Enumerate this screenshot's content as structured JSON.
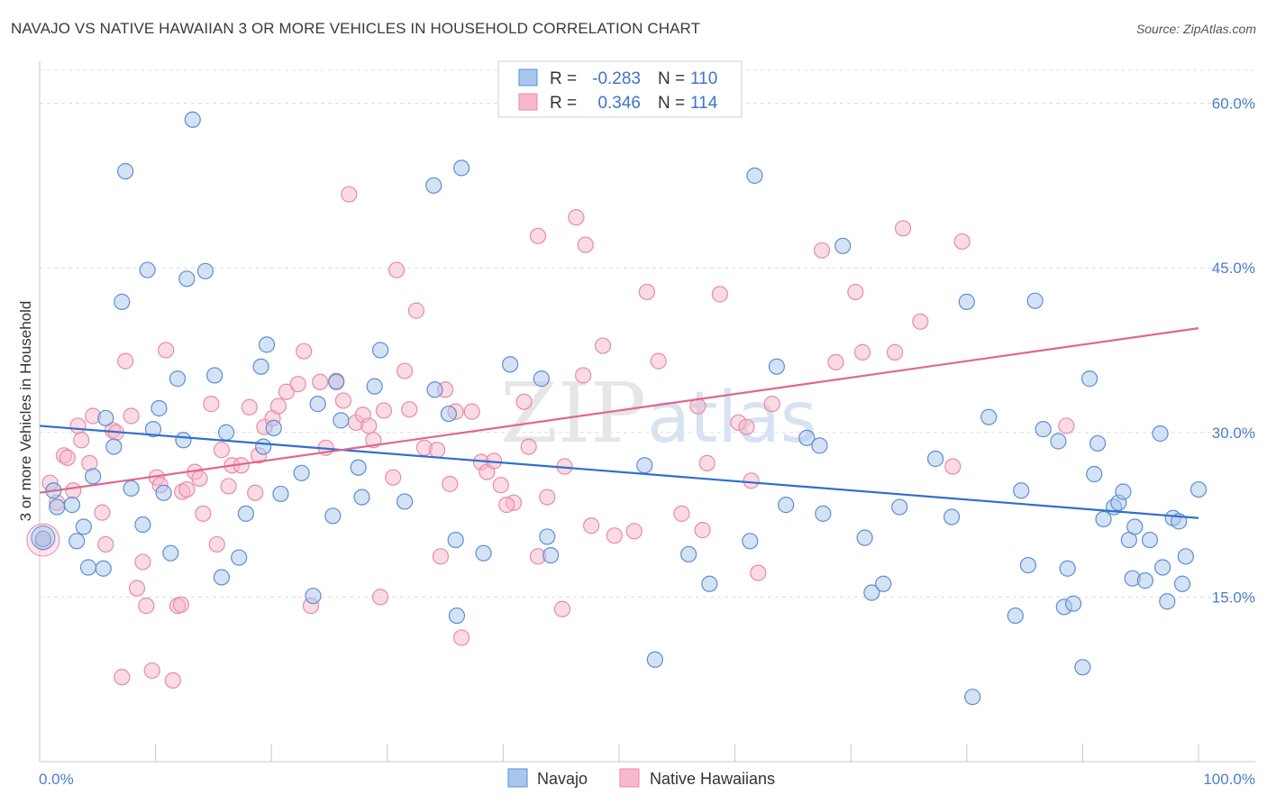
{
  "title": "NAVAJO VS NATIVE HAWAIIAN 3 OR MORE VEHICLES IN HOUSEHOLD CORRELATION CHART",
  "source": "Source: ZipAtlas.com",
  "watermark": {
    "zip": "ZIP",
    "atlas": "atlas"
  },
  "legend_box": {
    "rows": [
      {
        "r_label": "R =",
        "r_value": "-0.283",
        "n_label": "N =",
        "n_value": "110"
      },
      {
        "r_label": "R =",
        "r_value": "0.346",
        "n_label": "N =",
        "n_value": "114"
      }
    ]
  },
  "bottom_legend": [
    "Navajo",
    "Native Hawaiians"
  ],
  "colors": {
    "navajo_fill": "#a9c6ec",
    "navajo_stroke": "#5b8fd4",
    "navajo_line": "#2f6fce",
    "hawaiian_fill": "#f6b8ca",
    "hawaiian_stroke": "#e98aa7",
    "hawaiian_line": "#e0678f",
    "grid": "#dddddd",
    "tick_label": "#4a7fc8"
  },
  "chart_data": {
    "type": "scatter",
    "title": "NAVAJO VS NATIVE HAWAIIAN 3 OR MORE VEHICLES IN HOUSEHOLD CORRELATION CHART",
    "xlabel": "",
    "ylabel": "3 or more Vehicles in Household",
    "xlim": [
      0,
      100
    ],
    "ylim": [
      0,
      63
    ],
    "x_tick_labels": [
      "0.0%",
      "100.0%"
    ],
    "y_ticks": [
      15,
      30,
      45,
      60
    ],
    "y_tick_labels": [
      "15.0%",
      "30.0%",
      "45.0%",
      "60.0%"
    ],
    "grid": true,
    "legend_position": "top-center",
    "series": [
      {
        "name": "Navajo",
        "r": -0.283,
        "n": 110,
        "trend": {
          "x": [
            0,
            100
          ],
          "y": [
            30.6,
            22.2
          ]
        },
        "points": [
          [
            1.2,
            24.7
          ],
          [
            1.5,
            23.2
          ],
          [
            2.8,
            23.4
          ],
          [
            3.8,
            21.4
          ],
          [
            3.2,
            20.1
          ],
          [
            4.2,
            17.7
          ],
          [
            4.6,
            26.0
          ],
          [
            5.5,
            17.6
          ],
          [
            5.7,
            31.3
          ],
          [
            6.4,
            28.7
          ],
          [
            7.1,
            41.9
          ],
          [
            7.4,
            53.8
          ],
          [
            7.9,
            24.9
          ],
          [
            8.9,
            21.6
          ],
          [
            9.3,
            44.8
          ],
          [
            9.8,
            30.3
          ],
          [
            10.3,
            32.2
          ],
          [
            10.7,
            24.5
          ],
          [
            11.3,
            19.0
          ],
          [
            11.9,
            34.9
          ],
          [
            12.4,
            29.3
          ],
          [
            12.7,
            44.0
          ],
          [
            13.2,
            58.5
          ],
          [
            14.3,
            44.7
          ],
          [
            15.1,
            35.2
          ],
          [
            15.7,
            16.8
          ],
          [
            16.1,
            30.0
          ],
          [
            17.2,
            18.6
          ],
          [
            17.8,
            22.6
          ],
          [
            19.3,
            28.7
          ],
          [
            19.1,
            36.0
          ],
          [
            19.6,
            38.0
          ],
          [
            20.2,
            30.4
          ],
          [
            20.8,
            24.4
          ],
          [
            22.6,
            26.3
          ],
          [
            23.6,
            15.1
          ],
          [
            24.0,
            32.6
          ],
          [
            25.3,
            22.4
          ],
          [
            25.6,
            34.6
          ],
          [
            26.0,
            31.1
          ],
          [
            27.5,
            26.8
          ],
          [
            27.8,
            24.1
          ],
          [
            28.9,
            34.2
          ],
          [
            29.4,
            37.5
          ],
          [
            31.5,
            23.7
          ],
          [
            34.0,
            52.5
          ],
          [
            34.1,
            33.9
          ],
          [
            35.3,
            31.7
          ],
          [
            35.9,
            20.2
          ],
          [
            36.0,
            13.3
          ],
          [
            36.4,
            54.1
          ],
          [
            38.3,
            19.0
          ],
          [
            40.6,
            36.2
          ],
          [
            43.3,
            34.9
          ],
          [
            43.8,
            20.5
          ],
          [
            44.1,
            18.8
          ],
          [
            52.2,
            27.0
          ],
          [
            53.1,
            9.3
          ],
          [
            56.0,
            18.9
          ],
          [
            57.8,
            16.2
          ],
          [
            61.3,
            20.1
          ],
          [
            61.7,
            53.4
          ],
          [
            63.6,
            36.0
          ],
          [
            64.4,
            23.4
          ],
          [
            66.2,
            29.5
          ],
          [
            67.3,
            28.8
          ],
          [
            67.6,
            22.6
          ],
          [
            69.3,
            47.0
          ],
          [
            71.2,
            20.4
          ],
          [
            71.8,
            15.4
          ],
          [
            72.8,
            16.2
          ],
          [
            74.2,
            23.2
          ],
          [
            77.3,
            27.6
          ],
          [
            78.7,
            22.3
          ],
          [
            80.0,
            41.9
          ],
          [
            80.5,
            5.9
          ],
          [
            81.9,
            31.4
          ],
          [
            84.7,
            24.7
          ],
          [
            84.2,
            13.3
          ],
          [
            85.3,
            17.9
          ],
          [
            85.9,
            42.0
          ],
          [
            86.6,
            30.3
          ],
          [
            87.9,
            29.2
          ],
          [
            88.4,
            14.1
          ],
          [
            88.7,
            17.6
          ],
          [
            89.2,
            14.4
          ],
          [
            90.0,
            8.6
          ],
          [
            90.6,
            34.9
          ],
          [
            91.0,
            26.2
          ],
          [
            91.3,
            29.0
          ],
          [
            91.8,
            22.1
          ],
          [
            92.7,
            23.2
          ],
          [
            93.1,
            23.6
          ],
          [
            93.5,
            24.6
          ],
          [
            94.0,
            20.2
          ],
          [
            94.3,
            16.7
          ],
          [
            94.5,
            21.4
          ],
          [
            95.4,
            16.5
          ],
          [
            95.8,
            20.2
          ],
          [
            96.7,
            29.9
          ],
          [
            96.9,
            17.7
          ],
          [
            97.3,
            14.6
          ],
          [
            97.8,
            22.2
          ],
          [
            98.3,
            21.9
          ],
          [
            98.6,
            16.2
          ],
          [
            98.9,
            18.7
          ],
          [
            100.0,
            24.8
          ],
          [
            0.3,
            20.3
          ]
        ]
      },
      {
        "name": "Native Hawaiians",
        "r": 0.346,
        "n": 114,
        "trend": {
          "x": [
            0,
            100
          ],
          "y": [
            24.5,
            39.5
          ]
        },
        "points": [
          [
            0.3,
            20.0
          ],
          [
            0.9,
            25.4
          ],
          [
            1.5,
            23.6
          ],
          [
            2.1,
            27.9
          ],
          [
            2.4,
            27.7
          ],
          [
            2.9,
            24.7
          ],
          [
            3.3,
            30.6
          ],
          [
            3.6,
            29.3
          ],
          [
            4.3,
            27.2
          ],
          [
            4.6,
            31.5
          ],
          [
            5.4,
            22.7
          ],
          [
            5.7,
            19.8
          ],
          [
            6.3,
            30.2
          ],
          [
            6.6,
            30.0
          ],
          [
            7.1,
            7.7
          ],
          [
            7.4,
            36.5
          ],
          [
            7.9,
            31.5
          ],
          [
            8.4,
            15.8
          ],
          [
            8.9,
            18.2
          ],
          [
            9.2,
            14.2
          ],
          [
            9.7,
            8.3
          ],
          [
            10.1,
            25.9
          ],
          [
            10.4,
            25.2
          ],
          [
            10.9,
            37.5
          ],
          [
            11.5,
            7.4
          ],
          [
            11.9,
            14.2
          ],
          [
            12.3,
            24.6
          ],
          [
            12.7,
            24.8
          ],
          [
            13.4,
            26.4
          ],
          [
            13.8,
            25.8
          ],
          [
            14.1,
            22.6
          ],
          [
            14.8,
            32.6
          ],
          [
            15.3,
            19.8
          ],
          [
            15.7,
            28.4
          ],
          [
            16.3,
            25.1
          ],
          [
            16.6,
            27.0
          ],
          [
            17.4,
            27.0
          ],
          [
            18.1,
            32.3
          ],
          [
            18.6,
            24.5
          ],
          [
            18.9,
            27.9
          ],
          [
            19.4,
            30.5
          ],
          [
            20.1,
            31.3
          ],
          [
            20.6,
            32.4
          ],
          [
            21.3,
            33.7
          ],
          [
            22.3,
            34.4
          ],
          [
            22.8,
            37.4
          ],
          [
            23.4,
            14.2
          ],
          [
            24.2,
            34.6
          ],
          [
            24.7,
            28.6
          ],
          [
            25.6,
            34.7
          ],
          [
            26.2,
            32.9
          ],
          [
            26.7,
            51.7
          ],
          [
            27.3,
            30.9
          ],
          [
            27.9,
            31.6
          ],
          [
            28.4,
            30.6
          ],
          [
            28.8,
            29.3
          ],
          [
            29.4,
            15.0
          ],
          [
            29.7,
            32.0
          ],
          [
            30.5,
            25.9
          ],
          [
            30.8,
            44.8
          ],
          [
            31.5,
            35.6
          ],
          [
            31.9,
            32.1
          ],
          [
            32.5,
            41.1
          ],
          [
            33.2,
            28.6
          ],
          [
            34.3,
            28.4
          ],
          [
            34.6,
            18.7
          ],
          [
            35.0,
            33.9
          ],
          [
            35.4,
            25.3
          ],
          [
            35.9,
            31.9
          ],
          [
            36.4,
            11.3
          ],
          [
            37.3,
            31.9
          ],
          [
            38.1,
            27.3
          ],
          [
            38.6,
            26.4
          ],
          [
            39.2,
            27.4
          ],
          [
            39.8,
            25.2
          ],
          [
            40.9,
            23.6
          ],
          [
            41.8,
            32.8
          ],
          [
            42.2,
            28.7
          ],
          [
            43.0,
            18.7
          ],
          [
            43.8,
            24.1
          ],
          [
            45.1,
            13.9
          ],
          [
            45.3,
            26.9
          ],
          [
            46.3,
            49.6
          ],
          [
            46.9,
            35.2
          ],
          [
            47.6,
            21.5
          ],
          [
            48.6,
            37.9
          ],
          [
            49.6,
            20.6
          ],
          [
            51.3,
            21.0
          ],
          [
            52.4,
            42.8
          ],
          [
            53.4,
            36.5
          ],
          [
            55.4,
            22.6
          ],
          [
            56.8,
            32.4
          ],
          [
            57.2,
            21.1
          ],
          [
            57.6,
            27.2
          ],
          [
            58.7,
            42.6
          ],
          [
            60.3,
            30.9
          ],
          [
            61.0,
            30.5
          ],
          [
            61.4,
            25.6
          ],
          [
            62.0,
            17.2
          ],
          [
            63.2,
            32.6
          ],
          [
            67.5,
            46.6
          ],
          [
            68.7,
            36.4
          ],
          [
            70.4,
            42.8
          ],
          [
            71.0,
            37.3
          ],
          [
            73.8,
            37.3
          ],
          [
            74.5,
            48.6
          ],
          [
            76.0,
            40.1
          ],
          [
            78.8,
            26.9
          ],
          [
            79.6,
            47.4
          ],
          [
            88.6,
            30.6
          ],
          [
            47.1,
            47.1
          ],
          [
            43.0,
            47.9
          ],
          [
            40.3,
            23.4
          ],
          [
            12.2,
            14.3
          ]
        ]
      }
    ]
  }
}
